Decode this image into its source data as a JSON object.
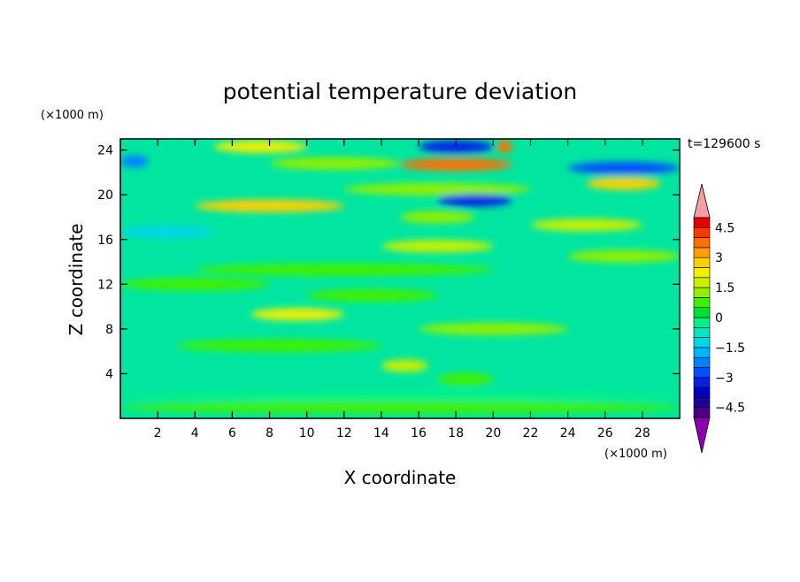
{
  "chart_data": {
    "type": "heatmap",
    "title": "potential temperature deviation",
    "xlabel": "X coordinate",
    "ylabel": "Z coordinate",
    "x_unit": "(×1000 m)",
    "y_unit": "(×1000 m)",
    "time_label": "t=129600 s",
    "xlim": [
      0,
      30
    ],
    "ylim": [
      0,
      25
    ],
    "x_ticks": [
      2,
      4,
      6,
      8,
      10,
      12,
      14,
      16,
      18,
      20,
      22,
      24,
      26,
      28
    ],
    "y_ticks": [
      4,
      8,
      12,
      16,
      20,
      24
    ],
    "grid": false,
    "colorbar": {
      "placement": "right",
      "min": -5,
      "max": 5,
      "step": 0.5,
      "labels": [
        "4.5",
        "3",
        "1.5",
        "0",
        "−1.5",
        "−3",
        "−4.5"
      ],
      "label_values": [
        4.5,
        3,
        1.5,
        0,
        -1.5,
        -3,
        -4.5
      ],
      "colors": [
        "#4b0082",
        "#1e0096",
        "#0000c0",
        "#0020e6",
        "#0050ff",
        "#0082ff",
        "#00b4ff",
        "#00d6e6",
        "#00e6c0",
        "#00f08c",
        "#00e030",
        "#40f000",
        "#90f000",
        "#c8f000",
        "#f0f000",
        "#ffd000",
        "#ffa000",
        "#ff7000",
        "#ff3800",
        "#e60000"
      ],
      "under_color": "#8a00b0",
      "over_color": "#f4a0a0"
    },
    "bands": [
      {
        "z": 24.3,
        "x0": 5,
        "x1": 10,
        "value": 2.2
      },
      {
        "z": 24.3,
        "x0": 16,
        "x1": 20,
        "value": -3.2
      },
      {
        "z": 24.3,
        "x0": 20.2,
        "x1": 21,
        "value": 3.5
      },
      {
        "z": 23.0,
        "x0": 0,
        "x1": 1.5,
        "value": -2.5
      },
      {
        "z": 22.8,
        "x0": 8,
        "x1": 15,
        "value": 1.2
      },
      {
        "z": 22.7,
        "x0": 15,
        "x1": 21,
        "value": 3.8
      },
      {
        "z": 22.4,
        "x0": 24,
        "x1": 30,
        "value": -3.0
      },
      {
        "z": 21.0,
        "x0": 25,
        "x1": 29,
        "value": 2.6
      },
      {
        "z": 20.5,
        "x0": 12,
        "x1": 22,
        "value": 1.3
      },
      {
        "z": 19.5,
        "x0": 17,
        "x1": 21,
        "value": -3.1
      },
      {
        "z": 19.0,
        "x0": 4,
        "x1": 12,
        "value": 2.6
      },
      {
        "z": 18.0,
        "x0": 15,
        "x1": 19,
        "value": 1.4
      },
      {
        "z": 17.3,
        "x0": 22,
        "x1": 28,
        "value": 1.8
      },
      {
        "z": 16.7,
        "x0": 0,
        "x1": 5,
        "value": -1.2
      },
      {
        "z": 15.4,
        "x0": 14,
        "x1": 20,
        "value": 1.5
      },
      {
        "z": 14.5,
        "x0": 24,
        "x1": 30,
        "value": 1.2
      },
      {
        "z": 13.3,
        "x0": 4,
        "x1": 20,
        "value": 0.6
      },
      {
        "z": 12.0,
        "x0": 0,
        "x1": 8,
        "value": 0.7
      },
      {
        "z": 11.0,
        "x0": 10,
        "x1": 17,
        "value": 0.5
      },
      {
        "z": 9.3,
        "x0": 7,
        "x1": 12,
        "value": 2.0
      },
      {
        "z": 8.0,
        "x0": 16,
        "x1": 24,
        "value": 1.2
      },
      {
        "z": 6.5,
        "x0": 3,
        "x1": 14,
        "value": 0.6
      },
      {
        "z": 4.7,
        "x0": 14,
        "x1": 16.5,
        "value": 1.8
      },
      {
        "z": 3.5,
        "x0": 17,
        "x1": 20,
        "value": 0.6
      },
      {
        "z": 2.0,
        "x0": 0,
        "x1": 30,
        "value": -0.3
      },
      {
        "z": 1.0,
        "x0": 0,
        "x1": 30,
        "value": 0.5
      }
    ]
  }
}
